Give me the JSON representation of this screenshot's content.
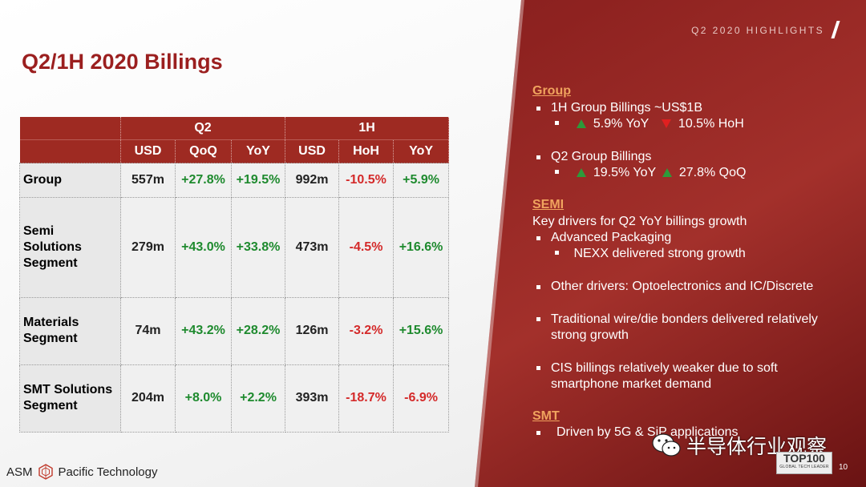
{
  "slide": {
    "title": "Q2/1H 2020 Billings",
    "header_tag": "Q2 2020 HIGHLIGHTS",
    "page_number": "10",
    "company": "ASM Pacific Technology"
  },
  "table": {
    "groups": [
      "Q2",
      "1H"
    ],
    "columns": [
      "USD",
      "QoQ",
      "YoY",
      "USD",
      "HoH",
      "YoY"
    ],
    "rows": [
      {
        "label": [
          "Group"
        ],
        "values": [
          "557m",
          "+27.8%",
          "+19.5%",
          "992m",
          "-10.5%",
          "+5.9%"
        ]
      },
      {
        "label": [
          "Semi",
          "Solutions",
          "Segment"
        ],
        "values": [
          "279m",
          "+43.0%",
          "+33.8%",
          "473m",
          "-4.5%",
          "+16.6%"
        ]
      },
      {
        "label": [
          "Materials",
          "Segment"
        ],
        "values": [
          "74m",
          "+43.2%",
          "+28.2%",
          "126m",
          "-3.2%",
          "+15.6%"
        ]
      },
      {
        "label": [
          "SMT Solutions",
          "Segment"
        ],
        "values": [
          "204m",
          "+8.0%",
          "+2.2%",
          "393m",
          "-18.7%",
          "-6.9%"
        ]
      }
    ]
  },
  "highlights": {
    "group_heading": "Group",
    "group_b1": "1H Group Billings ~US$1B",
    "group_b1_yoy": "5.9% YoY",
    "group_b1_hoh": "10.5% HoH",
    "group_b2": "Q2 Group Billings",
    "group_b2_yoy": "19.5% YoY",
    "group_b2_qoq": "27.8% QoQ",
    "semi_heading": "SEMI",
    "semi_intro": "Key drivers for Q2 YoY billings growth",
    "semi_b1": "Advanced Packaging",
    "semi_b1_sub": "NEXX delivered strong growth",
    "semi_b2": "Other drivers: Optoelectronics and IC/Discrete",
    "semi_b3": "Traditional wire/die bonders delivered relatively strong growth",
    "semi_b4": "CIS billings relatively weaker due to soft smartphone market demand",
    "smt_heading": "SMT",
    "smt_b1": "Driven by 5G & SiP applications"
  },
  "watermark": {
    "text": "半导体行业观察",
    "badge_big": "TOP100",
    "badge_small": "GLOBAL TECH LEADER"
  },
  "colors": {
    "accent_red": "#9e2a22",
    "positive": "#1e8a2e",
    "negative": "#d42a2a",
    "section_heading": "#f0a35e"
  },
  "icons": {
    "logo": "asm-logo-icon",
    "up": "triangle-up-icon",
    "down": "triangle-down-icon",
    "watermark": "wechat-icon"
  }
}
